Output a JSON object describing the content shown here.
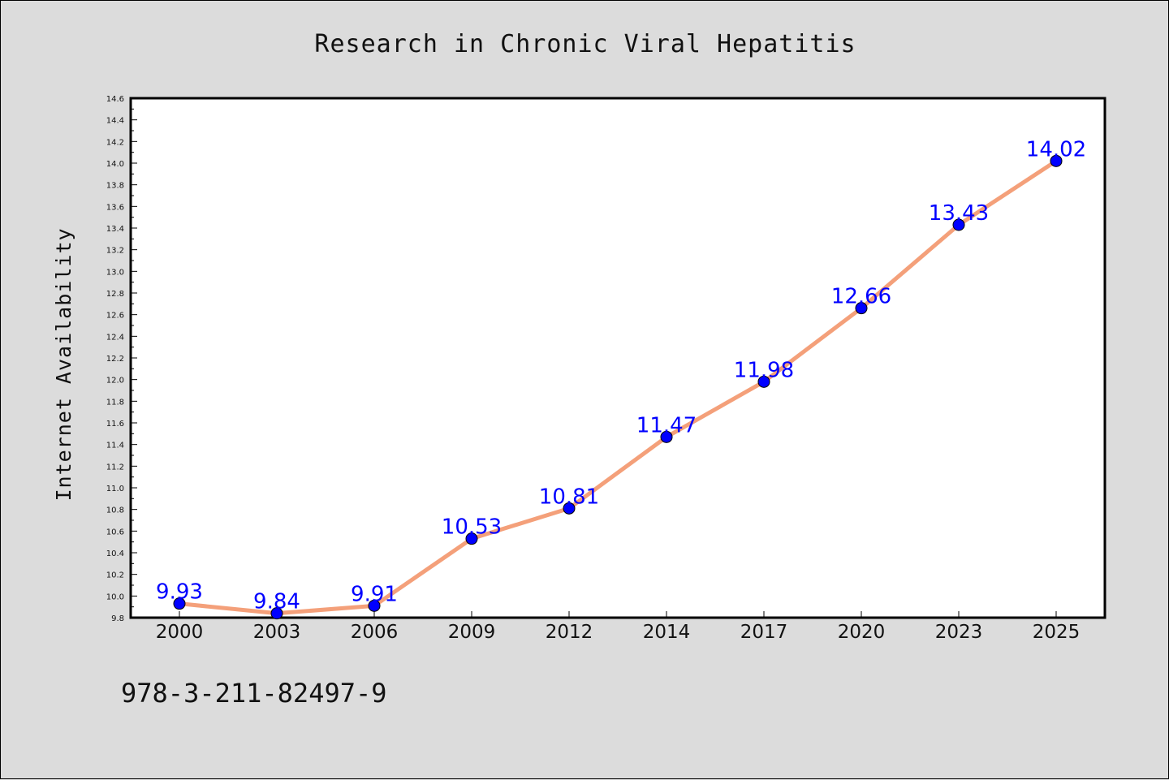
{
  "chart_data": {
    "type": "line",
    "title": "Research in Chronic Viral Hepatitis",
    "xlabel": "",
    "ylabel": "Internet Availability",
    "categories": [
      "2000",
      "2003",
      "2006",
      "2009",
      "2012",
      "2014",
      "2017",
      "2020",
      "2023",
      "2025"
    ],
    "series": [
      {
        "values": [
          9.93,
          9.84,
          9.91,
          10.53,
          10.81,
          11.47,
          11.98,
          12.66,
          13.43,
          14.02
        ],
        "labels": [
          "9.93",
          "9.84",
          "9.91",
          "10.53",
          "10.81",
          "11.47",
          "11.98",
          "12.66",
          "13.43",
          "14.02"
        ],
        "line_color": "#f4a07a",
        "marker_color": "#0000ff"
      }
    ],
    "ylim": [
      9.8,
      14.6
    ],
    "yticks": [
      "9.8",
      "10.0",
      "10.2",
      "10.4",
      "10.6",
      "10.8",
      "11.0",
      "11.2",
      "11.4",
      "11.6",
      "11.8",
      "12.0",
      "12.2",
      "12.4",
      "12.6",
      "12.8",
      "13.0",
      "13.2",
      "13.4",
      "13.6",
      "13.8",
      "14.0",
      "14.2",
      "14.4",
      "14.6"
    ],
    "grid": false,
    "legend": "none"
  },
  "footer": {
    "text": "978-3-211-82497-9"
  },
  "colors": {
    "background": "#dcdcdc",
    "plot_background": "#ffffff",
    "line": "#f4a07a",
    "marker": "#0000ff",
    "data_label": "#0000ff"
  }
}
